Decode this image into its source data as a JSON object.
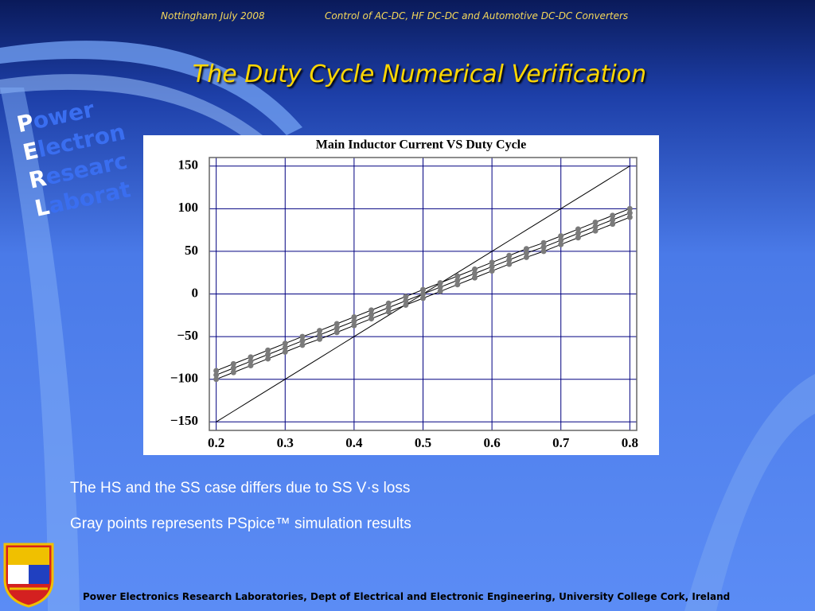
{
  "header": {
    "left": "Nottingham July 2008",
    "right": "Control of AC-DC, HF DC-DC and Automotive DC-DC Converters"
  },
  "title": "The Duty Cycle Numerical Verification",
  "logo": {
    "letters": [
      "P",
      "E",
      "R",
      "L"
    ],
    "rest": [
      "ower",
      "lectron",
      "esearc",
      "aborat"
    ]
  },
  "bullets": [
    "The HS and the SS case differs due to SS V·s loss",
    "Gray points represents PSpice™ simulation results"
  ],
  "footer": "Power Electronics Research Laboratories, Dept of Electrical and Electronic Engineering, University College Cork, Ireland",
  "chart_data": {
    "type": "line",
    "title": "Main Inductor Current VS Duty Cycle",
    "x": [
      0.2,
      0.225,
      0.25,
      0.275,
      0.3,
      0.325,
      0.35,
      0.375,
      0.4,
      0.425,
      0.45,
      0.475,
      0.5,
      0.525,
      0.55,
      0.575,
      0.6,
      0.625,
      0.65,
      0.675,
      0.7,
      0.725,
      0.75,
      0.775,
      0.8
    ],
    "series": [
      {
        "color": "#000000",
        "markers": false,
        "values": [
          -150,
          -137.5,
          -125,
          -112.5,
          -100,
          -87.5,
          -75,
          -62.5,
          -50,
          -37.5,
          -25,
          -12.5,
          0,
          12.5,
          25,
          37.5,
          50,
          62.5,
          75,
          87.5,
          100,
          112.5,
          125,
          137.5,
          150
        ]
      },
      {
        "color": "#000000",
        "markers": true,
        "marker_color": "#7a7a7a",
        "values": [
          -90,
          -82,
          -74,
          -66,
          -58,
          -50,
          -43,
          -35,
          -27,
          -19,
          -11,
          -3,
          5,
          13,
          21,
          29,
          37,
          45,
          53,
          60,
          68,
          76,
          84,
          92,
          100
        ]
      },
      {
        "color": "#000000",
        "markers": true,
        "marker_color": "#7a7a7a",
        "values": [
          -95,
          -87,
          -79,
          -71,
          -63,
          -55,
          -48,
          -40,
          -32,
          -24,
          -16,
          -8,
          0,
          8,
          16,
          24,
          32,
          40,
          48,
          55,
          63,
          71,
          79,
          87,
          95
        ]
      },
      {
        "color": "#000000",
        "markers": true,
        "marker_color": "#7a7a7a",
        "values": [
          -100,
          -92,
          -84,
          -76,
          -68,
          -60,
          -53,
          -45,
          -37,
          -29,
          -21,
          -13,
          -5,
          3,
          11,
          19,
          27,
          35,
          43,
          50,
          58,
          66,
          74,
          82,
          90
        ]
      }
    ],
    "xlim": [
      0.19,
      0.81
    ],
    "ylim": [
      -160,
      160
    ],
    "xticks": [
      0.2,
      0.3,
      0.4,
      0.5,
      0.6,
      0.7,
      0.8
    ],
    "yticks": [
      {
        "value": -150,
        "label": "−150"
      },
      {
        "value": -100,
        "label": "−100"
      },
      {
        "value": -50,
        "label": "−50"
      },
      0,
      50,
      100,
      150
    ],
    "grid": true
  }
}
